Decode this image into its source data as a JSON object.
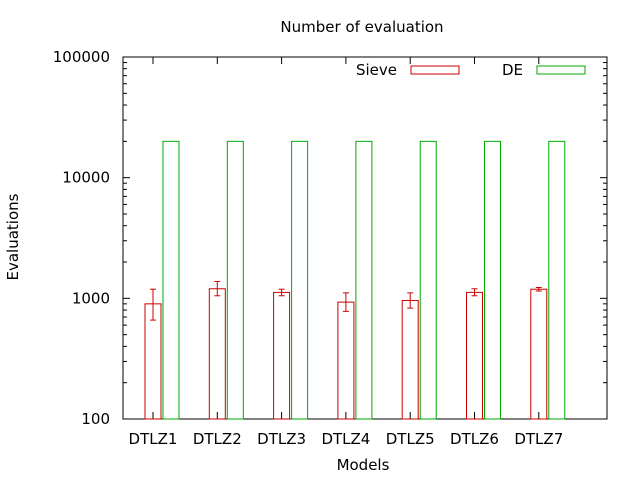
{
  "chart_data": {
    "type": "bar",
    "title": "Number of evaluation",
    "xlabel": "Models",
    "ylabel": "Evaluations",
    "yscale": "log",
    "ylim": [
      100,
      100000
    ],
    "yticks": [
      100,
      1000,
      10000,
      100000
    ],
    "ytick_labels": [
      "100",
      "1000",
      "10000",
      "100000"
    ],
    "categories": [
      "DTLZ1",
      "DTLZ2",
      "DTLZ3",
      "DTLZ4",
      "DTLZ5",
      "DTLZ6",
      "DTLZ7"
    ],
    "series": [
      {
        "name": "Sieve",
        "color": "#cc0000",
        "values": [
          900,
          1200,
          1120,
          930,
          960,
          1120,
          1190
        ],
        "error": [
          [
            660,
            1190
          ],
          [
            1050,
            1380
          ],
          [
            1050,
            1190
          ],
          [
            780,
            1110
          ],
          [
            830,
            1110
          ],
          [
            1050,
            1200
          ],
          [
            1150,
            1230
          ]
        ]
      },
      {
        "name": "DE",
        "color": "#00aa00",
        "values": [
          20000,
          20000,
          20000,
          20000,
          20000,
          20000,
          20000
        ]
      }
    ],
    "legend_position": "top-right",
    "grid": false
  }
}
